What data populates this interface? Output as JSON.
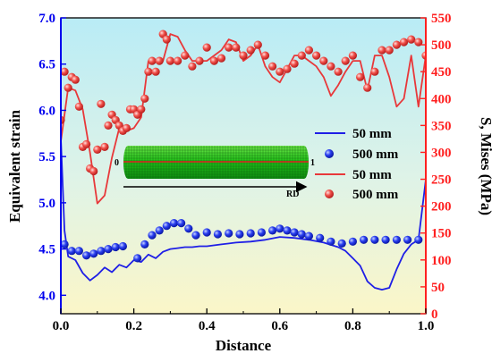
{
  "chart_data": {
    "type": "line",
    "xlabel": "Distance",
    "ylabel_left": "Equivalent strain",
    "ylabel_right": "S, Mises (MPa)",
    "xlim": [
      0.0,
      1.0
    ],
    "ylim_left": [
      3.8,
      7.0
    ],
    "ylim_right": [
      0,
      550
    ],
    "x_ticks": [
      "0.0",
      "0.2",
      "0.4",
      "0.6",
      "0.8",
      "1.0"
    ],
    "y_left_ticks": [
      "4.0",
      "4.5",
      "5.0",
      "5.5",
      "6.0",
      "6.5",
      "7.0"
    ],
    "y_right_ticks": [
      "0",
      "50",
      "100",
      "150",
      "200",
      "250",
      "300",
      "350",
      "400",
      "450",
      "500",
      "550"
    ],
    "legend_position": "center-right",
    "colors": {
      "strain": "#1f1fe6",
      "stress": "#e8383a",
      "bg_top": "#b9ecf6",
      "bg_bottom": "#fbf6c8"
    },
    "series": [
      {
        "name": "50 mm",
        "axis": "left",
        "style": "line",
        "x": [
          0.0,
          0.01,
          0.02,
          0.04,
          0.06,
          0.08,
          0.1,
          0.12,
          0.14,
          0.16,
          0.18,
          0.2,
          0.22,
          0.24,
          0.26,
          0.28,
          0.3,
          0.32,
          0.34,
          0.36,
          0.38,
          0.4,
          0.44,
          0.48,
          0.52,
          0.56,
          0.6,
          0.64,
          0.68,
          0.72,
          0.76,
          0.78,
          0.8,
          0.82,
          0.84,
          0.86,
          0.88,
          0.9,
          0.92,
          0.94,
          0.96,
          0.98,
          1.0
        ],
        "y": [
          5.7,
          4.7,
          4.42,
          4.38,
          4.24,
          4.16,
          4.22,
          4.3,
          4.25,
          4.33,
          4.3,
          4.38,
          4.36,
          4.44,
          4.4,
          4.47,
          4.5,
          4.51,
          4.52,
          4.52,
          4.53,
          4.53,
          4.55,
          4.57,
          4.58,
          4.6,
          4.63,
          4.62,
          4.6,
          4.57,
          4.52,
          4.48,
          4.4,
          4.32,
          4.15,
          4.08,
          4.06,
          4.08,
          4.28,
          4.45,
          4.55,
          4.6,
          5.25
        ]
      },
      {
        "name": "500 mm",
        "axis": "left",
        "style": "scatter",
        "x": [
          0.01,
          0.03,
          0.05,
          0.07,
          0.09,
          0.11,
          0.13,
          0.15,
          0.17,
          0.21,
          0.23,
          0.25,
          0.27,
          0.29,
          0.31,
          0.33,
          0.35,
          0.37,
          0.4,
          0.43,
          0.46,
          0.49,
          0.52,
          0.55,
          0.58,
          0.6,
          0.62,
          0.64,
          0.66,
          0.68,
          0.71,
          0.74,
          0.77,
          0.8,
          0.83,
          0.86,
          0.89,
          0.92,
          0.95,
          0.98
        ],
        "y": [
          4.55,
          4.48,
          4.48,
          4.43,
          4.45,
          4.48,
          4.5,
          4.52,
          4.53,
          4.4,
          4.55,
          4.65,
          4.7,
          4.75,
          4.78,
          4.78,
          4.72,
          4.65,
          4.68,
          4.66,
          4.67,
          4.66,
          4.67,
          4.68,
          4.7,
          4.72,
          4.7,
          4.68,
          4.66,
          4.64,
          4.62,
          4.58,
          4.56,
          4.58,
          4.6,
          4.6,
          4.6,
          4.6,
          4.6,
          4.6
        ]
      },
      {
        "name": "50 mm",
        "axis": "right",
        "style": "line",
        "x": [
          0.0,
          0.02,
          0.04,
          0.06,
          0.08,
          0.1,
          0.12,
          0.14,
          0.16,
          0.18,
          0.2,
          0.22,
          0.24,
          0.26,
          0.28,
          0.3,
          0.32,
          0.34,
          0.36,
          0.38,
          0.4,
          0.42,
          0.44,
          0.46,
          0.48,
          0.5,
          0.52,
          0.54,
          0.56,
          0.58,
          0.6,
          0.62,
          0.64,
          0.66,
          0.68,
          0.7,
          0.72,
          0.74,
          0.76,
          0.78,
          0.8,
          0.82,
          0.84,
          0.86,
          0.88,
          0.9,
          0.92,
          0.94,
          0.96,
          0.98,
          1.0
        ],
        "y": [
          320,
          420,
          415,
          380,
          300,
          205,
          220,
          290,
          345,
          340,
          345,
          365,
          470,
          470,
          470,
          520,
          515,
          490,
          470,
          470,
          470,
          480,
          490,
          510,
          505,
          470,
          480,
          500,
          460,
          440,
          430,
          455,
          480,
          480,
          470,
          460,
          440,
          405,
          425,
          450,
          470,
          470,
          415,
          480,
          480,
          440,
          385,
          400,
          480,
          385,
          480
        ]
      },
      {
        "name": "500 mm",
        "axis": "right",
        "style": "scatter",
        "x": [
          0.0,
          0.01,
          0.02,
          0.03,
          0.04,
          0.05,
          0.06,
          0.07,
          0.08,
          0.09,
          0.1,
          0.11,
          0.12,
          0.13,
          0.14,
          0.15,
          0.16,
          0.17,
          0.18,
          0.19,
          0.2,
          0.21,
          0.22,
          0.23,
          0.24,
          0.25,
          0.26,
          0.27,
          0.28,
          0.29,
          0.3,
          0.32,
          0.34,
          0.36,
          0.38,
          0.4,
          0.42,
          0.44,
          0.46,
          0.48,
          0.5,
          0.52,
          0.54,
          0.56,
          0.58,
          0.6,
          0.62,
          0.64,
          0.66,
          0.68,
          0.7,
          0.72,
          0.74,
          0.76,
          0.78,
          0.8,
          0.82,
          0.84,
          0.86,
          0.88,
          0.9,
          0.92,
          0.94,
          0.96,
          0.98,
          1.0
        ],
        "y": [
          360,
          450,
          420,
          440,
          435,
          385,
          310,
          315,
          270,
          265,
          305,
          390,
          310,
          350,
          370,
          360,
          350,
          340,
          345,
          380,
          380,
          370,
          380,
          400,
          450,
          470,
          450,
          470,
          520,
          510,
          470,
          470,
          480,
          460,
          470,
          495,
          470,
          475,
          495,
          495,
          480,
          490,
          500,
          480,
          460,
          450,
          455,
          465,
          480,
          490,
          480,
          470,
          460,
          450,
          470,
          480,
          440,
          420,
          450,
          490,
          490,
          500,
          505,
          510,
          505,
          480
        ]
      }
    ]
  },
  "inset": {
    "label_left": "0",
    "label_right": "1",
    "label_axis": "RD"
  }
}
